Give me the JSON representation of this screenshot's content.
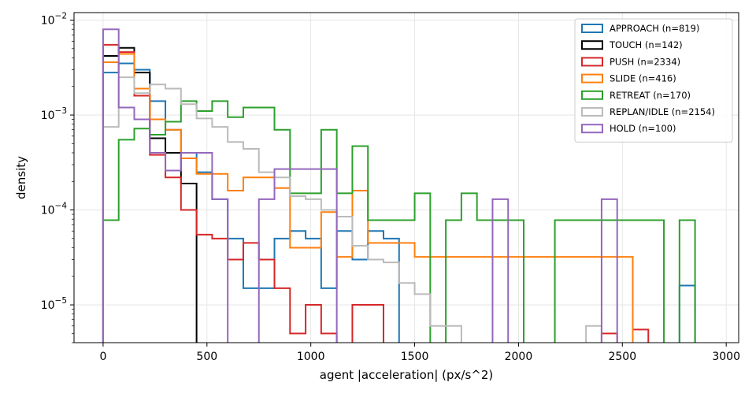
{
  "chart_data": {
    "type": "histogram-step",
    "xlabel": "agent |acceleration| (px/s^2)",
    "ylabel": "density",
    "xlim": [
      -140,
      3060
    ],
    "ylim": [
      4e-06,
      0.012
    ],
    "yscale": "log",
    "x_ticks": [
      0,
      500,
      1000,
      1500,
      2000,
      2500,
      3000
    ],
    "x_tick_labels": [
      "0",
      "500",
      "1000",
      "1500",
      "2000",
      "2500",
      "3000"
    ],
    "y_ticks": [
      1e-05,
      0.0001,
      0.001,
      0.01
    ],
    "y_tick_bases": [
      "10",
      "10",
      "10",
      "10"
    ],
    "y_tick_exps": [
      "−5",
      "−4",
      "−3",
      "−2"
    ],
    "grid": true,
    "legend_position": "top-right",
    "series": [
      {
        "name": "APPROACH (n=819)",
        "color": "#1f77b4",
        "edges": [
          0,
          75,
          150,
          225,
          300,
          375,
          450,
          525,
          600,
          675,
          750,
          825,
          900,
          975,
          1050,
          1125,
          1200,
          1275,
          1350,
          1425,
          2775,
          2850
        ],
        "values": [
          0.0028,
          0.0035,
          0.003,
          0.0014,
          0.0007,
          0.0004,
          0.00025,
          0.00013,
          5e-05,
          1.5e-05,
          1.5e-05,
          5e-05,
          6e-05,
          5e-05,
          1.5e-05,
          6e-05,
          3e-05,
          6e-05,
          5e-05,
          0,
          1.6e-05
        ]
      },
      {
        "name": "TOUCH (n=142)",
        "color": "#000000",
        "edges": [
          0,
          75,
          150,
          225,
          300,
          375,
          450
        ],
        "values": [
          0.0042,
          0.0051,
          0.0028,
          0.00057,
          0.0004,
          0.00019
        ]
      },
      {
        "name": "PUSH (n=2334)",
        "color": "#d62728",
        "edges": [
          0,
          75,
          150,
          225,
          300,
          375,
          450,
          525,
          600,
          675,
          750,
          825,
          900,
          975,
          1050,
          1125,
          1200,
          1275,
          1350,
          1425,
          2400,
          2475,
          2550,
          2625
        ],
        "values": [
          0.0055,
          0.0046,
          0.0016,
          0.00038,
          0.00022,
          0.0001,
          5.5e-05,
          5e-05,
          3e-05,
          4.5e-05,
          3e-05,
          1.5e-05,
          5e-06,
          1e-05,
          5e-06,
          0,
          1e-05,
          1e-05,
          0,
          0,
          5e-06,
          0,
          5.5e-06
        ]
      },
      {
        "name": "SLIDE (n=416)",
        "color": "#ff7f0e",
        "edges": [
          0,
          75,
          150,
          225,
          300,
          375,
          450,
          525,
          600,
          675,
          750,
          825,
          900,
          975,
          1050,
          1125,
          1200,
          1275,
          1350,
          1425,
          1500,
          1575,
          2025,
          2400,
          2550
        ],
        "values": [
          0.0036,
          0.0044,
          0.0019,
          0.0009,
          0.0007,
          0.00035,
          0.00024,
          0.00024,
          0.00016,
          0.00022,
          0.00022,
          0.00017,
          4e-05,
          4e-05,
          9.5e-05,
          3.2e-05,
          0.00016,
          4.5e-05,
          4.5e-05,
          4.5e-05,
          3.2e-05,
          3.2e-05,
          3.2e-05,
          3.2e-05
        ]
      },
      {
        "name": "RETREAT (n=170)",
        "color": "#2ca02c",
        "edges": [
          0,
          75,
          150,
          225,
          300,
          375,
          450,
          525,
          600,
          675,
          750,
          825,
          900,
          975,
          1050,
          1125,
          1200,
          1275,
          1350,
          1425,
          1500,
          1575,
          1650,
          1725,
          1800,
          1875,
          1950,
          2025,
          2100,
          2175,
          2250,
          2325,
          2400,
          2475,
          2550,
          2625,
          2700,
          2775,
          2850
        ],
        "values": [
          7.8e-05,
          0.00055,
          0.00072,
          0.00062,
          0.00085,
          0.0014,
          0.0011,
          0.0014,
          0.00095,
          0.0012,
          0.0012,
          0.0007,
          0.00015,
          0.00015,
          0.0007,
          0.00015,
          0.00047,
          7.8e-05,
          7.8e-05,
          7.8e-05,
          0.00015,
          0,
          7.8e-05,
          0.00015,
          7.8e-05,
          7.8e-05,
          7.8e-05,
          0,
          0,
          7.8e-05,
          7.8e-05,
          7.8e-05,
          7.8e-05,
          7.8e-05,
          7.8e-05,
          7.8e-05,
          0,
          7.8e-05
        ]
      },
      {
        "name": "REPLAN/IDLE (n=2154)",
        "color": "#bbbbbb",
        "edges": [
          0,
          75,
          150,
          225,
          300,
          375,
          450,
          525,
          600,
          675,
          750,
          825,
          900,
          975,
          1050,
          1125,
          1200,
          1275,
          1350,
          1425,
          1500,
          1575,
          1650,
          1725,
          2325,
          2400
        ],
        "values": [
          0.00075,
          0.0025,
          0.0017,
          0.0021,
          0.0019,
          0.0013,
          0.00092,
          0.00075,
          0.00052,
          0.00044,
          0.00025,
          0.00022,
          0.00014,
          0.00013,
          0.0001,
          8.5e-05,
          4.2e-05,
          3e-05,
          2.8e-05,
          1.7e-05,
          1.3e-05,
          6e-06,
          6e-06,
          0,
          6e-06
        ]
      },
      {
        "name": "HOLD (n=100)",
        "color": "#9467bd",
        "edges": [
          0,
          75,
          150,
          225,
          300,
          375,
          450,
          525,
          600,
          675,
          750,
          825,
          900,
          975,
          1050,
          1125,
          1875,
          1950,
          2400,
          2475
        ],
        "values": [
          0.008,
          0.0012,
          0.0009,
          0.0004,
          0.00026,
          0.0004,
          0.0004,
          0.00013,
          0,
          0,
          0.00013,
          0.00027,
          0.00027,
          0.00027,
          0.00027,
          0,
          0.00013,
          0,
          0.00013
        ]
      }
    ]
  }
}
